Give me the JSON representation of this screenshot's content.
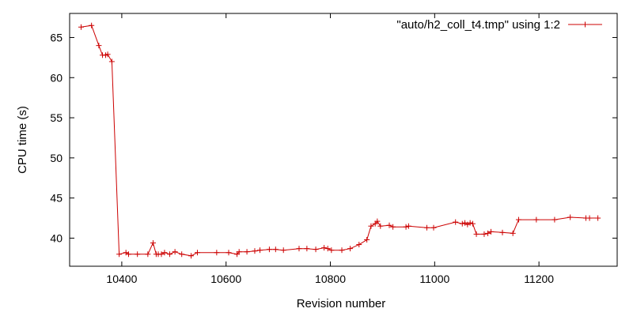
{
  "chart_data": {
    "type": "line",
    "title": "",
    "xlabel": "Revision number",
    "ylabel": "CPU time (s)",
    "xlim": [
      10300,
      11350
    ],
    "ylim": [
      36.5,
      68
    ],
    "xticks": [
      10400,
      10600,
      10800,
      11000,
      11200
    ],
    "yticks": [
      40,
      45,
      50,
      55,
      60,
      65
    ],
    "grid": false,
    "legend_position": "top-right",
    "line_color": "#cc0000",
    "series": [
      {
        "name": "\"auto/h2_coll_t4.tmp\" using 1:2",
        "x": [
          10322,
          10342,
          10356,
          10363,
          10369,
          10373,
          10381,
          10395,
          10408,
          10413,
          10430,
          10450,
          10460,
          10466,
          10470,
          10476,
          10482,
          10492,
          10502,
          10515,
          10533,
          10545,
          10582,
          10605,
          10621,
          10625,
          10640,
          10655,
          10665,
          10683,
          10695,
          10710,
          10740,
          10755,
          10772,
          10788,
          10795,
          10802,
          10822,
          10838,
          10855,
          10870,
          10878,
          10886,
          10890,
          10896,
          10913,
          10920,
          10945,
          10950,
          10985,
          10998,
          11040,
          11053,
          11058,
          11063,
          11068,
          11073,
          11080,
          11095,
          11102,
          11108,
          11130,
          11150,
          11161,
          11195,
          11230,
          11260,
          11290,
          11297,
          11313
        ],
        "y": [
          66.3,
          66.5,
          64.0,
          62.8,
          62.8,
          62.9,
          62.0,
          38.0,
          38.2,
          38.0,
          38.0,
          38.0,
          39.4,
          38.0,
          38.0,
          38.0,
          38.2,
          38.0,
          38.3,
          38.0,
          37.8,
          38.2,
          38.2,
          38.2,
          38.0,
          38.3,
          38.3,
          38.4,
          38.5,
          38.6,
          38.6,
          38.5,
          38.7,
          38.7,
          38.6,
          38.8,
          38.7,
          38.5,
          38.5,
          38.7,
          39.2,
          39.8,
          41.5,
          41.8,
          42.1,
          41.5,
          41.6,
          41.4,
          41.4,
          41.5,
          41.3,
          41.3,
          42.0,
          41.8,
          41.9,
          41.7,
          41.9,
          41.8,
          40.5,
          40.5,
          40.6,
          40.8,
          40.7,
          40.6,
          42.3,
          42.3,
          42.3,
          42.6,
          42.5,
          42.5,
          42.5
        ]
      }
    ]
  }
}
